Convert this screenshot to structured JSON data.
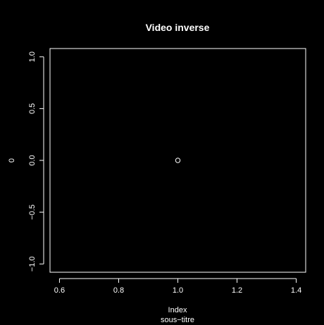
{
  "chart_data": {
    "type": "scatter",
    "title": "Video inverse",
    "xlabel": "Index",
    "ylabel": "0",
    "subtitle": "sous−titre",
    "xlim": [
      0.568,
      1.432
    ],
    "ylim": [
      -1.08,
      1.08
    ],
    "x_ticks": [
      0.6,
      0.8,
      1.0,
      1.2,
      1.4
    ],
    "x_tick_labels": [
      "0.6",
      "0.8",
      "1.0",
      "1.2",
      "1.4"
    ],
    "y_ticks": [
      -1.0,
      -0.5,
      0.0,
      0.5,
      1.0
    ],
    "y_tick_labels": [
      "−1.0",
      "−0.5",
      "0.0",
      "0.5",
      "1.0"
    ],
    "points": [
      {
        "x": 1.0,
        "y": 0.0
      }
    ],
    "grid": false,
    "legend": "none",
    "marker": "open-circle"
  },
  "colors": {
    "background": "#000000",
    "foreground": "#ffffff"
  }
}
